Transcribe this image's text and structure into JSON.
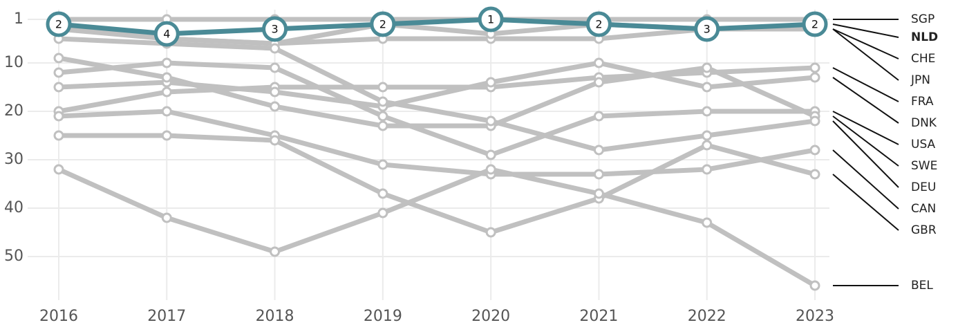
{
  "chart_data": {
    "type": "bump",
    "categories": [
      "2016",
      "2017",
      "2018",
      "2019",
      "2020",
      "2021",
      "2022",
      "2023"
    ],
    "ylim": [
      -1,
      59
    ],
    "y_reversed": true,
    "yticks": [
      1,
      10,
      20,
      30,
      40,
      50
    ],
    "grid": true,
    "series": [
      {
        "name": "SGP",
        "color": "#c0c0c0",
        "values": [
          1,
          1,
          1,
          1,
          1,
          1,
          1,
          1
        ]
      },
      {
        "name": "NLD",
        "color": "#4a8a96",
        "highlight": true,
        "values": [
          2,
          4,
          3,
          2,
          1,
          2,
          3,
          2
        ]
      },
      {
        "name": "CHE",
        "color": "#c0c0c0",
        "values": [
          2,
          5,
          6,
          5,
          5,
          5,
          3,
          3
        ]
      },
      {
        "name": "JPN",
        "color": "#c0c0c0",
        "values": [
          3,
          5,
          6,
          2,
          4,
          2,
          3,
          3
        ]
      },
      {
        "name": "FRA",
        "color": "#c0c0c0",
        "values": [
          20,
          16,
          15,
          15,
          15,
          13,
          12,
          11
        ]
      },
      {
        "name": "DNK",
        "color": "#c0c0c0",
        "values": [
          15,
          14,
          16,
          19,
          14,
          10,
          15,
          13
        ]
      },
      {
        "name": "USA",
        "color": "#c0c0c0",
        "values": [
          12,
          10,
          11,
          21,
          29,
          21,
          20,
          20
        ]
      },
      {
        "name": "SWE",
        "color": "#c0c0c0",
        "values": [
          9,
          13,
          19,
          23,
          23,
          14,
          11,
          21
        ]
      },
      {
        "name": "DEU",
        "color": "#c0c0c0",
        "values": [
          5,
          6,
          7,
          18,
          22,
          28,
          25,
          22
        ]
      },
      {
        "name": "CAN",
        "color": "#c0c0c0",
        "values": [
          21,
          20,
          25,
          31,
          33,
          33,
          32,
          28
        ]
      },
      {
        "name": "GBR",
        "color": "#c0c0c0",
        "values": [
          25,
          25,
          26,
          37,
          45,
          38,
          27,
          33
        ]
      },
      {
        "name": "BEL",
        "color": "#c0c0c0",
        "values": [
          32,
          42,
          49,
          41,
          32,
          37,
          43,
          56
        ]
      }
    ]
  }
}
